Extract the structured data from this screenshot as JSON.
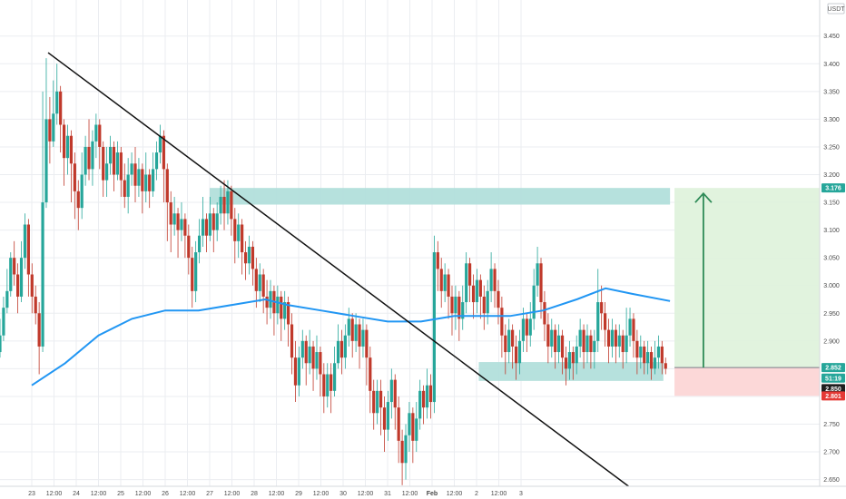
{
  "chart_data": {
    "type": "candlestick",
    "currency": "USDT",
    "y_axis": {
      "ylim": [
        2.615,
        3.515
      ],
      "ticks": [
        2.65,
        2.7,
        2.75,
        2.8,
        2.85,
        2.9,
        2.95,
        3.0,
        3.05,
        3.1,
        3.15,
        3.2,
        3.25,
        3.3,
        3.35,
        3.4,
        3.45
      ],
      "tick_labels": [
        "2.650",
        "2.700",
        "2.750",
        "2.800",
        "2.850",
        "2.900",
        "2.950",
        "3.000",
        "3.050",
        "3.100",
        "3.150",
        "3.200",
        "3.250",
        "3.300",
        "3.350",
        "3.400",
        "3.450"
      ]
    },
    "x_axis": {
      "tick_labels": [
        "23",
        "12:00",
        "24",
        "12:00",
        "25",
        "12:00",
        "26",
        "12:00",
        "27",
        "12:00",
        "28",
        "12:00",
        "29",
        "12:00",
        "30",
        "12:00",
        "31",
        "12:00",
        "Feb",
        "12:00",
        "2",
        "12:00",
        "3"
      ]
    },
    "price_labels": [
      {
        "label": "3.176",
        "value": 3.176,
        "color": "#26a69a"
      },
      {
        "label": "2.852",
        "value": 2.852,
        "color": "#26a69a"
      },
      {
        "label": "51:19",
        "value": 2.833,
        "color": "#26a69a"
      },
      {
        "label": "2.850",
        "value": 2.814,
        "color": "#1e1e1e"
      },
      {
        "label": "2.801",
        "value": 2.801,
        "color": "#e53935"
      }
    ],
    "trendline": {
      "start": [
        0.0,
        3.42
      ],
      "end": [
        27.6,
        2.615
      ]
    },
    "moving_average": {
      "color": "#2196f3",
      "points": [
        [
          0,
          2.82
        ],
        [
          1.5,
          2.86
        ],
        [
          3,
          2.91
        ],
        [
          4.5,
          2.94
        ],
        [
          6,
          2.955
        ],
        [
          7.5,
          2.955
        ],
        [
          9,
          2.965
        ],
        [
          10.5,
          2.975
        ],
        [
          11.5,
          2.965
        ],
        [
          13,
          2.955
        ],
        [
          14.5,
          2.945
        ],
        [
          16,
          2.935
        ],
        [
          17.5,
          2.935
        ],
        [
          19,
          2.945
        ],
        [
          20,
          2.945
        ],
        [
          21.5,
          2.945
        ],
        [
          23,
          2.955
        ],
        [
          24.5,
          2.975
        ],
        [
          25.8,
          2.995
        ],
        [
          27,
          2.985
        ],
        [
          28.7,
          2.972
        ]
      ]
    },
    "zones": [
      {
        "name": "resistance",
        "x": [
          8,
          28.7
        ],
        "y": [
          3.146,
          3.176
        ],
        "color": "#b2dfdb"
      },
      {
        "name": "support",
        "x": [
          20.1,
          28.4
        ],
        "y": [
          2.828,
          2.862
        ],
        "color": "#b2dfdb"
      },
      {
        "name": "target",
        "x": [
          28.9,
          36.2
        ],
        "y": [
          2.852,
          3.176
        ],
        "color": "#dff2dc"
      },
      {
        "name": "stop",
        "x": [
          28.9,
          36.2
        ],
        "y": [
          2.801,
          2.852
        ],
        "color": "#fcd6d6"
      }
    ],
    "arrow": {
      "x": 30.2,
      "from": 2.852,
      "to": 3.176,
      "color": "#2e8b57"
    },
    "candles": [
      [
        2.88,
        2.91,
        2.94,
        2.87
      ],
      [
        2.91,
        2.96,
        2.98,
        2.9
      ],
      [
        2.96,
        2.99,
        3.03,
        2.95
      ],
      [
        2.99,
        3.05,
        3.06,
        2.98
      ],
      [
        3.05,
        3.02,
        3.08,
        3.0
      ],
      [
        3.02,
        2.98,
        3.04,
        2.95
      ],
      [
        2.98,
        3.05,
        3.08,
        2.97
      ],
      [
        3.05,
        3.11,
        3.13,
        3.03
      ],
      [
        3.11,
        3.02,
        3.12,
        2.98
      ],
      [
        3.02,
        2.98,
        3.04,
        2.95
      ],
      [
        2.98,
        2.95,
        3.0,
        2.93
      ],
      [
        2.95,
        2.89,
        2.97,
        2.84
      ],
      [
        2.89,
        3.15,
        3.35,
        2.88
      ],
      [
        3.15,
        3.3,
        3.41,
        3.14
      ],
      [
        3.3,
        3.26,
        3.34,
        3.22
      ],
      [
        3.26,
        3.31,
        3.37,
        3.25
      ],
      [
        3.31,
        3.35,
        3.4,
        3.29
      ],
      [
        3.35,
        3.29,
        3.36,
        3.24
      ],
      [
        3.29,
        3.23,
        3.3,
        3.18
      ],
      [
        3.23,
        3.27,
        3.29,
        3.2
      ],
      [
        3.27,
        3.22,
        3.28,
        3.15
      ],
      [
        3.22,
        3.17,
        3.24,
        3.12
      ],
      [
        3.17,
        3.14,
        3.19,
        3.1
      ],
      [
        3.14,
        3.2,
        3.24,
        3.12
      ],
      [
        3.2,
        3.25,
        3.27,
        3.18
      ],
      [
        3.25,
        3.21,
        3.3,
        3.19
      ],
      [
        3.21,
        3.26,
        3.28,
        3.18
      ],
      [
        3.26,
        3.29,
        3.31,
        3.23
      ],
      [
        3.29,
        3.25,
        3.3,
        3.21
      ],
      [
        3.25,
        3.19,
        3.26,
        3.16
      ],
      [
        3.19,
        3.22,
        3.25,
        3.16
      ],
      [
        3.22,
        3.25,
        3.27,
        3.2
      ],
      [
        3.25,
        3.2,
        3.26,
        3.17
      ],
      [
        3.2,
        3.24,
        3.26,
        3.19
      ],
      [
        3.24,
        3.19,
        3.25,
        3.16
      ],
      [
        3.19,
        3.16,
        3.22,
        3.14
      ],
      [
        3.16,
        3.2,
        3.23,
        3.13
      ],
      [
        3.2,
        3.22,
        3.24,
        3.18
      ],
      [
        3.22,
        3.18,
        3.25,
        3.15
      ],
      [
        3.18,
        3.21,
        3.23,
        3.16
      ],
      [
        3.21,
        3.17,
        3.22,
        3.13
      ],
      [
        3.17,
        3.2,
        3.24,
        3.15
      ],
      [
        3.2,
        3.17,
        3.21,
        3.14
      ],
      [
        3.17,
        3.21,
        3.24,
        3.16
      ],
      [
        3.21,
        3.24,
        3.26,
        3.19
      ],
      [
        3.24,
        3.27,
        3.29,
        3.22
      ],
      [
        3.27,
        3.21,
        3.28,
        3.15
      ],
      [
        3.21,
        3.15,
        3.22,
        3.08
      ],
      [
        3.15,
        3.11,
        3.17,
        3.06
      ],
      [
        3.11,
        3.13,
        3.16,
        3.09
      ],
      [
        3.13,
        3.1,
        3.14,
        3.05
      ],
      [
        3.1,
        3.12,
        3.15,
        3.08
      ],
      [
        3.12,
        3.09,
        3.13,
        3.05
      ],
      [
        3.09,
        3.05,
        3.11,
        3.02
      ],
      [
        3.05,
        2.99,
        3.07,
        2.96
      ],
      [
        2.99,
        3.06,
        3.08,
        2.97
      ],
      [
        3.06,
        3.09,
        3.12,
        3.04
      ],
      [
        3.09,
        3.12,
        3.16,
        3.07
      ],
      [
        3.12,
        3.09,
        3.13,
        3.06
      ],
      [
        3.09,
        3.13,
        3.16,
        3.08
      ],
      [
        3.13,
        3.1,
        3.14,
        3.06
      ],
      [
        3.1,
        3.13,
        3.15,
        3.08
      ],
      [
        3.13,
        3.16,
        3.18,
        3.11
      ],
      [
        3.16,
        3.13,
        3.19,
        3.1
      ],
      [
        3.13,
        3.17,
        3.19,
        3.11
      ],
      [
        3.17,
        3.12,
        3.18,
        3.09
      ],
      [
        3.12,
        3.08,
        3.14,
        3.04
      ],
      [
        3.08,
        3.11,
        3.13,
        3.05
      ],
      [
        3.11,
        3.06,
        3.12,
        3.02
      ],
      [
        3.06,
        3.04,
        3.08,
        3.01
      ],
      [
        3.04,
        3.07,
        3.09,
        3.02
      ],
      [
        3.07,
        3.03,
        3.08,
        3.0
      ],
      [
        3.03,
        2.99,
        3.05,
        2.96
      ],
      [
        2.99,
        3.02,
        3.04,
        2.97
      ],
      [
        3.02,
        2.98,
        3.03,
        2.95
      ],
      [
        2.98,
        2.96,
        3.01,
        2.93
      ],
      [
        2.96,
        2.99,
        3.01,
        2.94
      ],
      [
        2.99,
        2.95,
        3.0,
        2.91
      ],
      [
        2.95,
        2.98,
        3.0,
        2.93
      ],
      [
        2.98,
        2.94,
        2.99,
        2.9
      ],
      [
        2.94,
        2.97,
        2.99,
        2.92
      ],
      [
        2.97,
        2.93,
        2.98,
        2.89
      ],
      [
        2.93,
        2.87,
        2.95,
        2.84
      ],
      [
        2.87,
        2.82,
        2.9,
        2.79
      ],
      [
        2.82,
        2.87,
        2.89,
        2.8
      ],
      [
        2.87,
        2.9,
        2.92,
        2.85
      ],
      [
        2.9,
        2.86,
        2.91,
        2.82
      ],
      [
        2.86,
        2.89,
        2.92,
        2.84
      ],
      [
        2.89,
        2.85,
        2.9,
        2.81
      ],
      [
        2.85,
        2.88,
        2.91,
        2.83
      ],
      [
        2.88,
        2.84,
        2.89,
        2.8
      ],
      [
        2.84,
        2.8,
        2.86,
        2.77
      ],
      [
        2.8,
        2.84,
        2.86,
        2.78
      ],
      [
        2.84,
        2.81,
        2.86,
        2.77
      ],
      [
        2.81,
        2.86,
        2.89,
        2.8
      ],
      [
        2.86,
        2.9,
        2.93,
        2.85
      ],
      [
        2.9,
        2.87,
        2.92,
        2.84
      ],
      [
        2.87,
        2.91,
        2.93,
        2.85
      ],
      [
        2.91,
        2.94,
        2.96,
        2.89
      ],
      [
        2.94,
        2.9,
        2.95,
        2.87
      ],
      [
        2.9,
        2.93,
        2.95,
        2.88
      ],
      [
        2.93,
        2.89,
        2.94,
        2.85
      ],
      [
        2.89,
        2.92,
        2.94,
        2.87
      ],
      [
        2.92,
        2.87,
        2.93,
        2.82
      ],
      [
        2.87,
        2.81,
        2.89,
        2.77
      ],
      [
        2.81,
        2.77,
        2.83,
        2.74
      ],
      [
        2.77,
        2.81,
        2.83,
        2.75
      ],
      [
        2.81,
        2.78,
        2.83,
        2.73
      ],
      [
        2.78,
        2.74,
        2.8,
        2.7
      ],
      [
        2.74,
        2.79,
        2.81,
        2.72
      ],
      [
        2.79,
        2.83,
        2.85,
        2.76
      ],
      [
        2.83,
        2.78,
        2.84,
        2.74
      ],
      [
        2.78,
        2.72,
        2.8,
        2.68
      ],
      [
        2.72,
        2.68,
        2.74,
        2.64
      ],
      [
        2.68,
        2.73,
        2.75,
        2.65
      ],
      [
        2.73,
        2.77,
        2.79,
        2.7
      ],
      [
        2.77,
        2.72,
        2.78,
        2.68
      ],
      [
        2.72,
        2.76,
        2.79,
        2.7
      ],
      [
        2.76,
        2.81,
        2.83,
        2.74
      ],
      [
        2.81,
        2.78,
        2.82,
        2.75
      ],
      [
        2.78,
        2.82,
        2.85,
        2.76
      ],
      [
        2.82,
        2.79,
        2.84,
        2.76
      ],
      [
        2.79,
        3.06,
        3.09,
        2.77
      ],
      [
        3.06,
        3.03,
        3.08,
        2.99
      ],
      [
        3.03,
        2.99,
        3.05,
        2.96
      ],
      [
        2.99,
        3.02,
        3.04,
        2.97
      ],
      [
        3.02,
        2.98,
        3.03,
        2.94
      ],
      [
        2.98,
        2.95,
        3.0,
        2.91
      ],
      [
        2.95,
        2.98,
        3.0,
        2.92
      ],
      [
        2.98,
        2.94,
        2.99,
        2.9
      ],
      [
        2.94,
        2.97,
        3.0,
        2.92
      ],
      [
        2.97,
        3.04,
        3.06,
        2.95
      ],
      [
        3.04,
        3.0,
        3.05,
        2.97
      ],
      [
        3.0,
        2.97,
        3.02,
        2.94
      ],
      [
        2.97,
        3.01,
        3.03,
        2.95
      ],
      [
        3.01,
        2.98,
        3.02,
        2.94
      ],
      [
        2.98,
        2.95,
        3.0,
        2.92
      ],
      [
        2.95,
        2.99,
        3.01,
        2.93
      ],
      [
        2.99,
        3.03,
        3.06,
        2.97
      ],
      [
        3.03,
        2.99,
        3.04,
        2.96
      ],
      [
        2.99,
        2.96,
        3.01,
        2.93
      ],
      [
        2.96,
        2.91,
        2.98,
        2.87
      ],
      [
        2.91,
        2.88,
        2.93,
        2.84
      ],
      [
        2.88,
        2.92,
        2.94,
        2.86
      ],
      [
        2.92,
        2.89,
        2.93,
        2.85
      ],
      [
        2.89,
        2.86,
        2.91,
        2.83
      ],
      [
        2.86,
        2.9,
        2.92,
        2.84
      ],
      [
        2.9,
        2.94,
        2.96,
        2.88
      ],
      [
        2.94,
        2.91,
        2.95,
        2.88
      ],
      [
        2.91,
        2.94,
        2.97,
        2.89
      ],
      [
        2.94,
        3.0,
        3.03,
        2.92
      ],
      [
        3.0,
        3.04,
        3.07,
        2.98
      ],
      [
        3.04,
        2.97,
        3.05,
        2.94
      ],
      [
        2.97,
        2.93,
        2.99,
        2.9
      ],
      [
        2.93,
        2.89,
        2.95,
        2.86
      ],
      [
        2.89,
        2.92,
        2.94,
        2.87
      ],
      [
        2.92,
        2.88,
        2.93,
        2.85
      ],
      [
        2.88,
        2.91,
        2.93,
        2.86
      ],
      [
        2.91,
        2.87,
        2.92,
        2.84
      ],
      [
        2.87,
        2.85,
        2.89,
        2.82
      ],
      [
        2.85,
        2.88,
        2.9,
        2.83
      ],
      [
        2.88,
        2.86,
        2.89,
        2.83
      ],
      [
        2.86,
        2.89,
        2.91,
        2.84
      ],
      [
        2.89,
        2.92,
        2.94,
        2.87
      ],
      [
        2.92,
        2.88,
        2.93,
        2.85
      ],
      [
        2.88,
        2.91,
        2.93,
        2.86
      ],
      [
        2.91,
        2.88,
        2.92,
        2.85
      ],
      [
        2.88,
        2.9,
        2.92,
        2.85
      ],
      [
        2.9,
        2.97,
        3.03,
        2.88
      ],
      [
        2.97,
        2.95,
        3.0,
        2.92
      ],
      [
        2.95,
        2.92,
        2.97,
        2.89
      ],
      [
        2.92,
        2.89,
        2.94,
        2.86
      ],
      [
        2.89,
        2.92,
        2.94,
        2.87
      ],
      [
        2.92,
        2.89,
        2.93,
        2.86
      ],
      [
        2.89,
        2.91,
        2.93,
        2.87
      ],
      [
        2.91,
        2.88,
        2.92,
        2.85
      ],
      [
        2.88,
        2.91,
        2.96,
        2.86
      ],
      [
        2.91,
        2.94,
        2.96,
        2.89
      ],
      [
        2.94,
        2.9,
        2.95,
        2.87
      ],
      [
        2.9,
        2.87,
        2.92,
        2.84
      ],
      [
        2.87,
        2.89,
        2.91,
        2.85
      ],
      [
        2.89,
        2.86,
        2.9,
        2.84
      ],
      [
        2.86,
        2.88,
        2.9,
        2.84
      ],
      [
        2.88,
        2.85,
        2.89,
        2.83
      ],
      [
        2.85,
        2.87,
        2.9,
        2.84
      ],
      [
        2.87,
        2.89,
        2.91,
        2.85
      ],
      [
        2.89,
        2.86,
        2.9,
        2.84
      ],
      [
        2.86,
        2.85,
        2.87,
        2.84
      ]
    ]
  }
}
